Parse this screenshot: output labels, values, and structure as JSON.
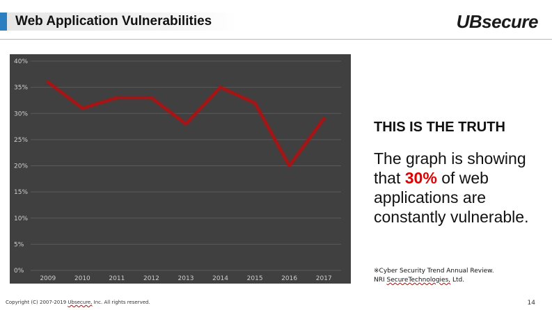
{
  "header": {
    "title": "Web Application Vulnerabilities",
    "logo_text": "UBsecure",
    "accent_color": "#2a7fc1"
  },
  "chart_data": {
    "type": "line",
    "title": "",
    "xlabel": "",
    "ylabel": "",
    "categories": [
      "2009",
      "2010",
      "2011",
      "2012",
      "2013",
      "2014",
      "2015",
      "2016",
      "2017"
    ],
    "values": [
      36,
      31,
      33,
      33,
      28,
      35,
      32,
      20,
      29
    ],
    "ylim": [
      0,
      40
    ],
    "y_ticks": [
      "0%",
      "5%",
      "10%",
      "15%",
      "20%",
      "25%",
      "30%",
      "35%",
      "40%"
    ],
    "grid": true,
    "line_color": "#b01010",
    "background_color": "#404040"
  },
  "side": {
    "heading": "THIS IS THE TRUTH",
    "body_before": "The graph is showing that ",
    "highlight": "30%",
    "body_after": " of web applications are constantly vulnerable.",
    "highlight_color": "#e00000",
    "source_line1_prefix": "※Cyber Security Trend  Annual Review.",
    "source_line2_before": "NRI ",
    "source_line2_underlined": "SecureTechnologies,",
    "source_line2_after": " Ltd."
  },
  "footer": {
    "copyright_before": "Copyright  (C)  2007-2019  ",
    "copyright_underlined": "Ubsecure,",
    "copyright_after": " Inc.  All rights reserved.",
    "page_number": "14"
  }
}
